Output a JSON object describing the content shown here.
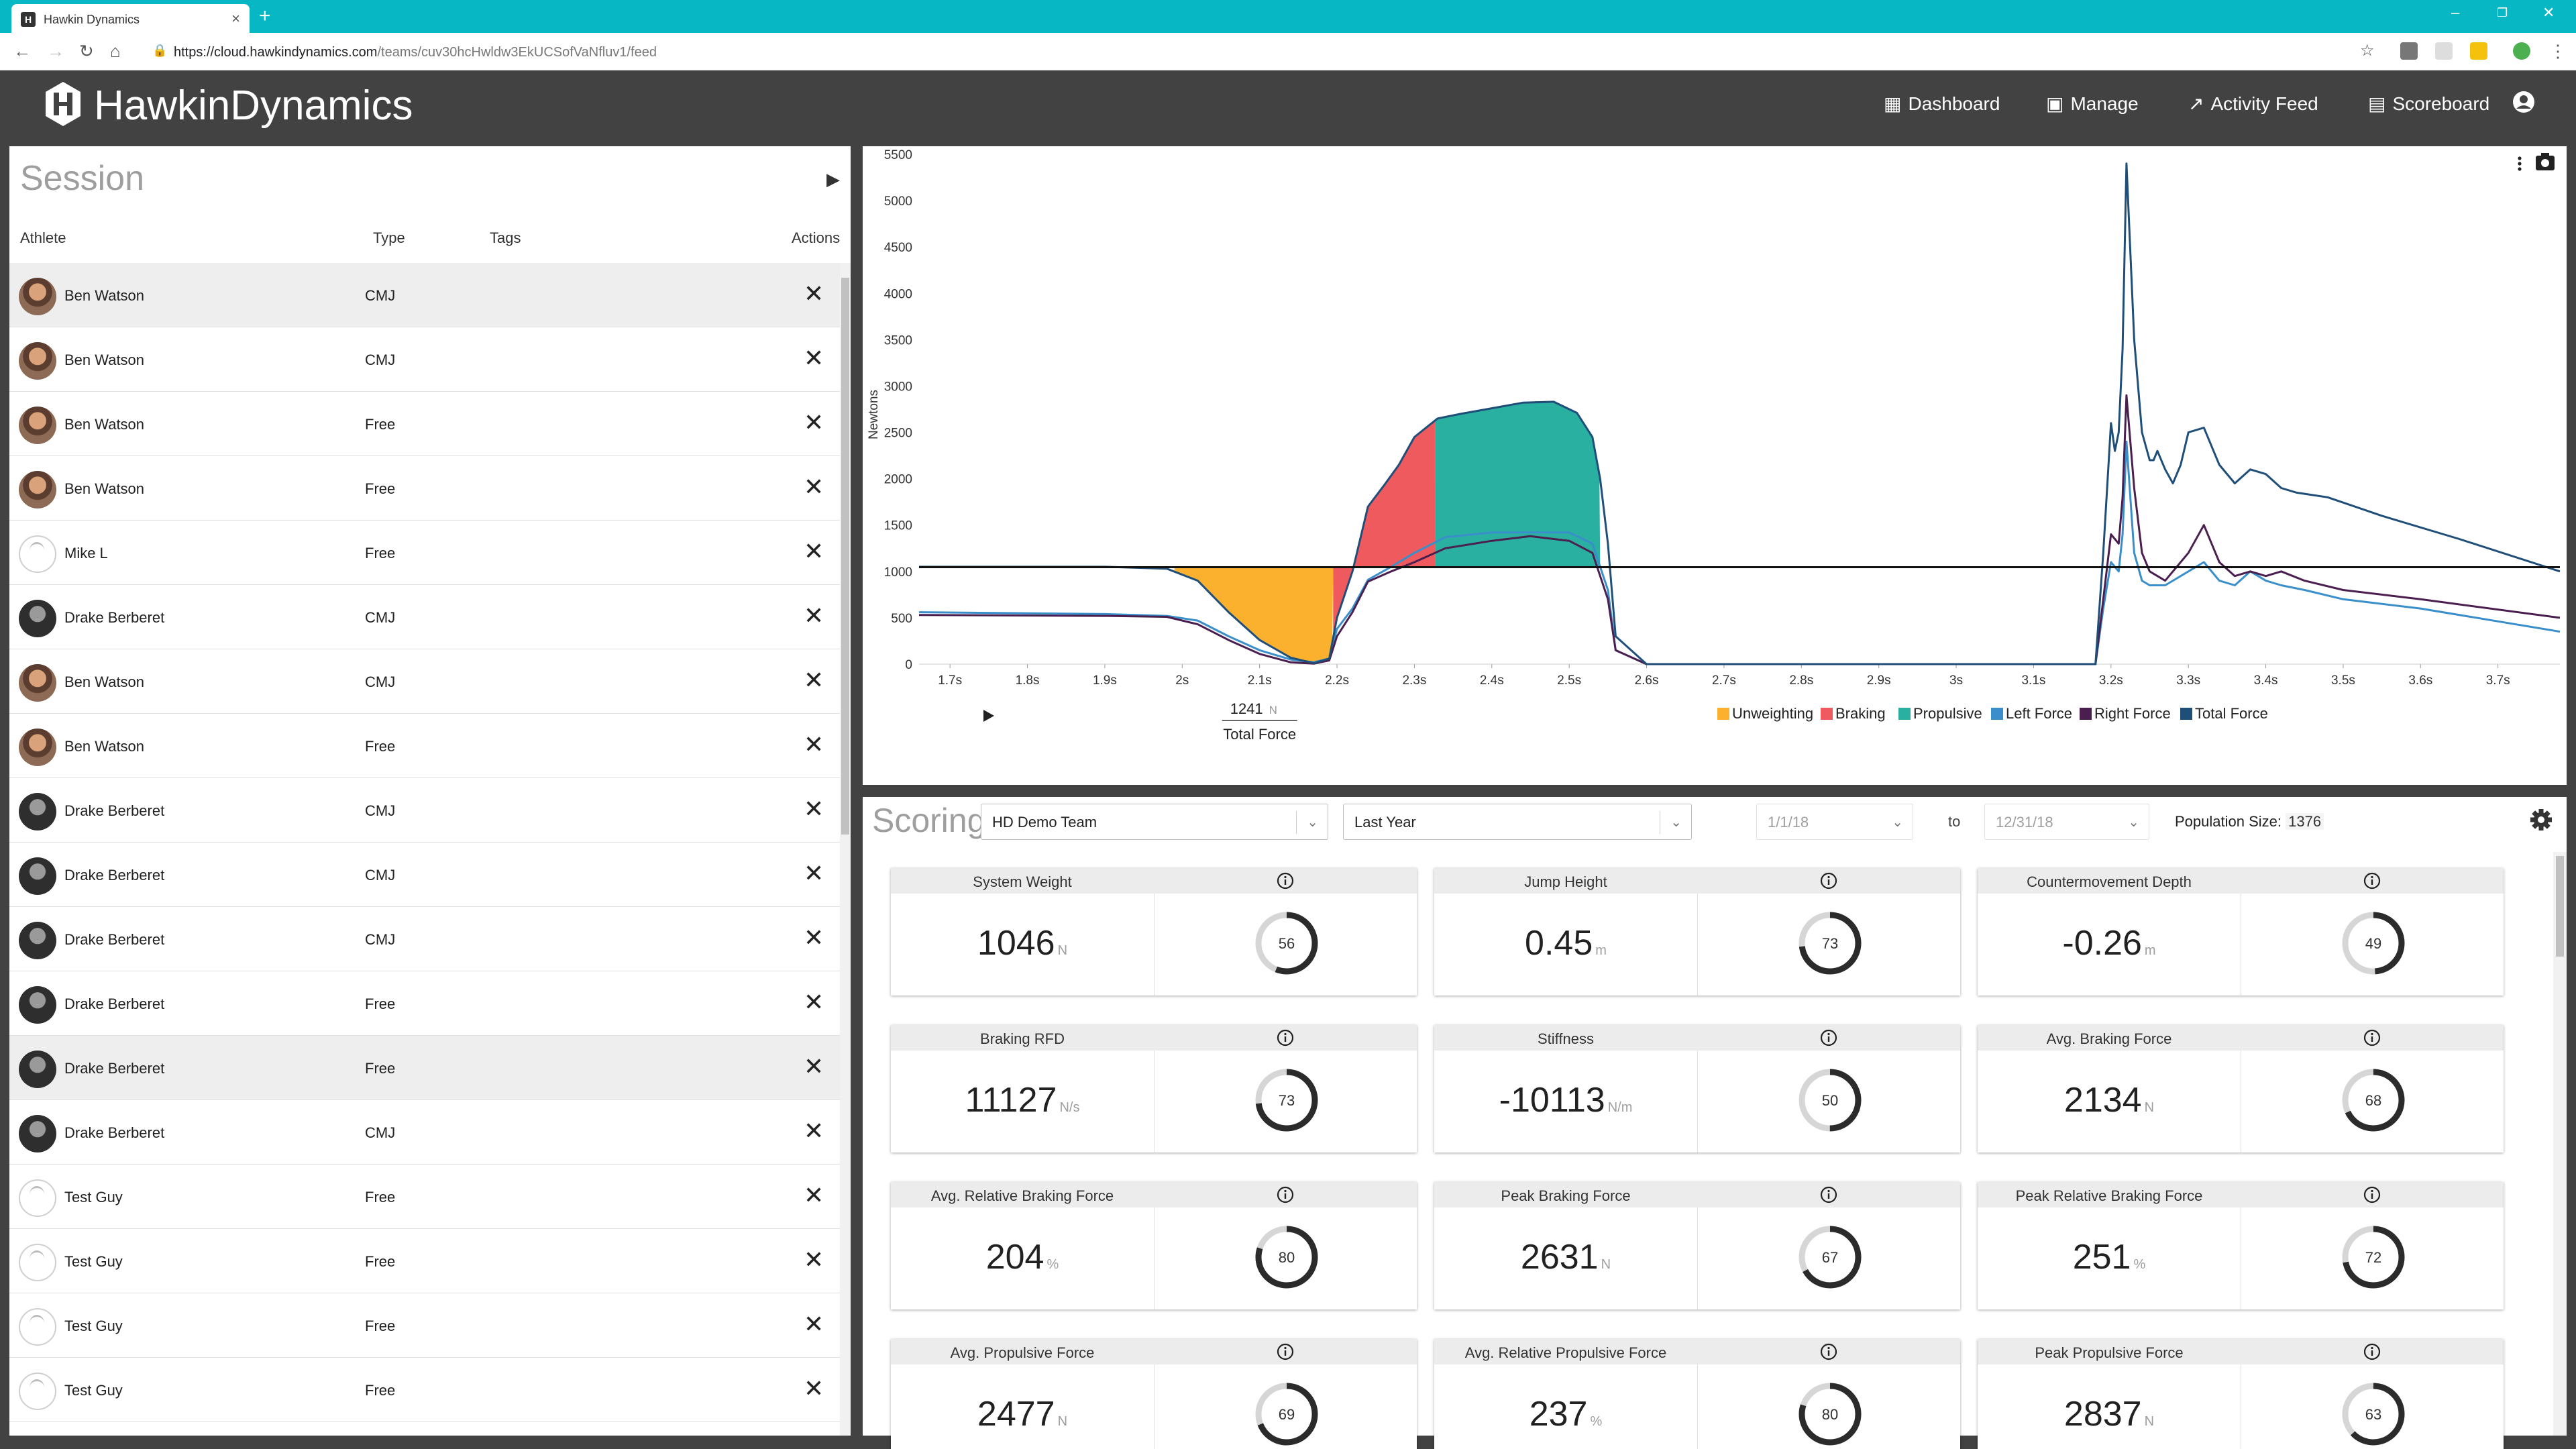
{
  "browser": {
    "tab_title": "Hawkin Dynamics",
    "tab_favicon": "H",
    "url_host": "https://cloud.hawkindynamics.com",
    "url_path": "/teams/cuv30hcHwldw3EkUCSofVaNfluv1/feed"
  },
  "header": {
    "logo_light": "Hawkin",
    "logo_bold": "Dynamics",
    "nav": [
      {
        "label": "Dashboard",
        "icon": "dashboard-icon"
      },
      {
        "label": "Manage",
        "icon": "manage-icon"
      },
      {
        "label": "Activity Feed",
        "icon": "trending-icon"
      },
      {
        "label": "Scoreboard",
        "icon": "scoreboard-icon"
      }
    ],
    "profile_icon": "account-circle-icon"
  },
  "session": {
    "title": "Session",
    "columns": {
      "athlete": "Athlete",
      "type": "Type",
      "tags": "Tags",
      "actions": "Actions"
    },
    "rows": [
      {
        "name": "Ben Watson",
        "type": "CMJ",
        "avatar": "photo",
        "selected": true
      },
      {
        "name": "Ben Watson",
        "type": "CMJ",
        "avatar": "photo"
      },
      {
        "name": "Ben Watson",
        "type": "Free",
        "avatar": "photo"
      },
      {
        "name": "Ben Watson",
        "type": "Free",
        "avatar": "photo"
      },
      {
        "name": "Mike L",
        "type": "Free",
        "avatar": "blank"
      },
      {
        "name": "Drake Berberet",
        "type": "CMJ",
        "avatar": "dark"
      },
      {
        "name": "Ben Watson",
        "type": "CMJ",
        "avatar": "photo"
      },
      {
        "name": "Ben Watson",
        "type": "Free",
        "avatar": "photo"
      },
      {
        "name": "Drake Berberet",
        "type": "CMJ",
        "avatar": "dark"
      },
      {
        "name": "Drake Berberet",
        "type": "CMJ",
        "avatar": "dark"
      },
      {
        "name": "Drake Berberet",
        "type": "CMJ",
        "avatar": "dark"
      },
      {
        "name": "Drake Berberet",
        "type": "Free",
        "avatar": "dark"
      },
      {
        "name": "Drake Berberet",
        "type": "Free",
        "avatar": "dark",
        "selected": true
      },
      {
        "name": "Drake Berberet",
        "type": "CMJ",
        "avatar": "dark"
      },
      {
        "name": "Test Guy",
        "type": "Free",
        "avatar": "blank"
      },
      {
        "name": "Test Guy",
        "type": "Free",
        "avatar": "blank"
      },
      {
        "name": "Test Guy",
        "type": "Free",
        "avatar": "blank"
      },
      {
        "name": "Test Guy",
        "type": "Free",
        "avatar": "blank"
      }
    ]
  },
  "chart_data": {
    "type": "line",
    "ylabel": "Newtons",
    "ylim": [
      0,
      5500
    ],
    "yticks": [
      0,
      500,
      1000,
      1500,
      2000,
      2500,
      3000,
      3500,
      4000,
      4500,
      5000,
      5500
    ],
    "xlim": [
      1.66,
      3.78
    ],
    "xticks": [
      "1.7s",
      "1.8s",
      "1.9s",
      "2s",
      "2.1s",
      "2.2s",
      "2.3s",
      "2.4s",
      "2.5s",
      "2.6s",
      "2.7s",
      "2.8s",
      "2.9s",
      "3s",
      "3.1s",
      "3.2s",
      "3.3s",
      "3.4s",
      "3.5s",
      "3.6s",
      "3.7s"
    ],
    "system_weight_line": 1046,
    "cursor": {
      "value": "1241",
      "unit": "N",
      "label": "Total Force"
    },
    "legend": [
      {
        "name": "Unweighting",
        "color": "#fbb12d"
      },
      {
        "name": "Braking",
        "color": "#ee5a5e"
      },
      {
        "name": "Propulsive",
        "color": "#2ab0a0"
      },
      {
        "name": "Left Force",
        "color": "#3a8fcb"
      },
      {
        "name": "Right Force",
        "color": "#4a1f4f"
      },
      {
        "name": "Total Force",
        "color": "#1f4e79"
      }
    ],
    "phases": {
      "unweighting": [
        1.99,
        2.195
      ],
      "braking": [
        2.195,
        2.327
      ],
      "propulsive": [
        2.327,
        2.54
      ]
    },
    "series": [
      {
        "name": "Total Force",
        "color": "#1f4e79",
        "x": [
          1.66,
          1.9,
          1.98,
          2.02,
          2.06,
          2.1,
          2.14,
          2.17,
          2.19,
          2.2,
          2.22,
          2.24,
          2.26,
          2.28,
          2.3,
          2.33,
          2.36,
          2.4,
          2.44,
          2.48,
          2.51,
          2.53,
          2.54,
          2.55,
          2.56,
          2.6,
          2.7,
          2.9,
          3.1,
          3.18,
          3.19,
          3.2,
          3.205,
          3.21,
          3.215,
          3.22,
          3.23,
          3.24,
          3.25,
          3.255,
          3.26,
          3.27,
          3.28,
          3.29,
          3.3,
          3.32,
          3.34,
          3.36,
          3.38,
          3.4,
          3.42,
          3.44,
          3.48,
          3.55,
          3.65,
          3.78
        ],
        "y": [
          1050,
          1050,
          1030,
          900,
          560,
          260,
          70,
          10,
          60,
          500,
          1000,
          1700,
          1920,
          2150,
          2450,
          2650,
          2700,
          2760,
          2820,
          2830,
          2710,
          2450,
          2000,
          1300,
          300,
          0,
          0,
          0,
          0,
          0,
          1200,
          2600,
          2300,
          2500,
          3400,
          5400,
          3500,
          2500,
          2200,
          2200,
          2300,
          2100,
          1950,
          2150,
          2500,
          2550,
          2150,
          1950,
          2100,
          2050,
          1900,
          1850,
          1800,
          1600,
          1350,
          1000
        ]
      },
      {
        "name": "Right Force",
        "color": "#4a1f4f",
        "x": [
          1.66,
          1.9,
          1.98,
          2.02,
          2.06,
          2.1,
          2.14,
          2.17,
          2.19,
          2.2,
          2.22,
          2.24,
          2.27,
          2.3,
          2.34,
          2.4,
          2.45,
          2.5,
          2.53,
          2.55,
          2.56,
          2.6,
          2.9,
          3.1,
          3.18,
          3.19,
          3.2,
          3.21,
          3.215,
          3.22,
          3.23,
          3.24,
          3.25,
          3.27,
          3.3,
          3.32,
          3.34,
          3.36,
          3.38,
          3.4,
          3.42,
          3.45,
          3.5,
          3.6,
          3.78
        ],
        "y": [
          530,
          520,
          510,
          430,
          260,
          110,
          20,
          5,
          40,
          300,
          560,
          890,
          1000,
          1100,
          1250,
          1330,
          1380,
          1330,
          1200,
          700,
          150,
          0,
          0,
          0,
          0,
          700,
          1400,
          1300,
          1800,
          2900,
          1900,
          1200,
          1000,
          900,
          1200,
          1500,
          1100,
          950,
          1000,
          950,
          1000,
          900,
          800,
          700,
          500
        ]
      },
      {
        "name": "Left Force",
        "color": "#3a8fcb",
        "x": [
          1.66,
          1.9,
          1.98,
          2.02,
          2.06,
          2.1,
          2.14,
          2.17,
          2.19,
          2.2,
          2.22,
          2.24,
          2.27,
          2.3,
          2.34,
          2.4,
          2.45,
          2.5,
          2.53,
          2.55,
          2.56,
          2.6,
          2.9,
          3.1,
          3.18,
          3.19,
          3.2,
          3.21,
          3.215,
          3.22,
          3.23,
          3.24,
          3.25,
          3.27,
          3.3,
          3.32,
          3.34,
          3.36,
          3.38,
          3.4,
          3.42,
          3.45,
          3.5,
          3.6,
          3.78
        ],
        "y": [
          560,
          540,
          520,
          470,
          300,
          150,
          50,
          20,
          60,
          380,
          600,
          910,
          1050,
          1200,
          1370,
          1420,
          1420,
          1420,
          1300,
          800,
          150,
          0,
          0,
          0,
          0,
          600,
          1100,
          1000,
          1400,
          2400,
          1200,
          900,
          850,
          850,
          1000,
          1100,
          900,
          850,
          1000,
          900,
          850,
          800,
          700,
          600,
          350
        ]
      }
    ]
  },
  "scoring": {
    "title": "Scoring",
    "team": "HD Demo Team",
    "period": "Last Year",
    "date_from": "1/1/18",
    "to_label": "to",
    "date_to": "12/31/18",
    "population_label": "Population Size:",
    "population_value": "1376",
    "settings_icon": "gear-icon",
    "cards": [
      {
        "label": "System Weight",
        "value": "1046",
        "unit": "N",
        "score": "56"
      },
      {
        "label": "Jump Height",
        "value": "0.45",
        "unit": "m",
        "score": "73"
      },
      {
        "label": "Countermovement Depth",
        "value": "-0.26",
        "unit": "m",
        "score": "49"
      },
      {
        "label": "Braking RFD",
        "value": "11127",
        "unit": "N/s",
        "score": "73"
      },
      {
        "label": "Stiffness",
        "value": "-10113",
        "unit": "N/m",
        "score": "50"
      },
      {
        "label": "Avg. Braking Force",
        "value": "2134",
        "unit": "N",
        "score": "68"
      },
      {
        "label": "Avg. Relative Braking Force",
        "value": "204",
        "unit": "%",
        "score": "80"
      },
      {
        "label": "Peak Braking Force",
        "value": "2631",
        "unit": "N",
        "score": "67"
      },
      {
        "label": "Peak Relative Braking Force",
        "value": "251",
        "unit": "%",
        "score": "72"
      },
      {
        "label": "Avg. Propulsive Force",
        "value": "2477",
        "unit": "N",
        "score": "69"
      },
      {
        "label": "Avg. Relative Propulsive Force",
        "value": "237",
        "unit": "%",
        "score": "80"
      },
      {
        "label": "Peak Propulsive Force",
        "value": "2837",
        "unit": "N",
        "score": "63"
      }
    ]
  }
}
